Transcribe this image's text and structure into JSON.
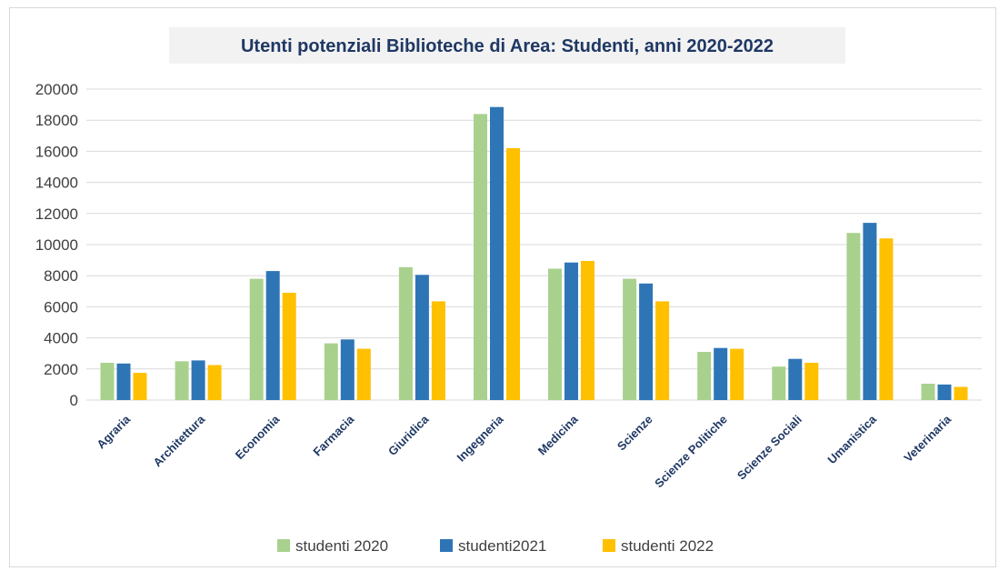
{
  "chart_data": {
    "type": "bar",
    "title": "Utenti potenziali Biblioteche di Area: Studenti, anni 2020-2022",
    "xlabel": "",
    "ylabel": "",
    "ylim": [
      0,
      20000
    ],
    "yticks": [
      0,
      2000,
      4000,
      6000,
      8000,
      10000,
      12000,
      14000,
      16000,
      18000,
      20000
    ],
    "grid": true,
    "legend_position": "bottom",
    "categories": [
      "Agraria",
      "Architettura",
      "Economia",
      "Farmacia",
      "Giuridica",
      "Ingegneria",
      "Medicina",
      "Scienze",
      "Scienze Politiche",
      "Scienze Sociali",
      "Umanistica",
      "Veterinaria"
    ],
    "series": [
      {
        "name": "studenti 2020",
        "color": "#a9d18e",
        "values": [
          2400,
          2500,
          7800,
          3650,
          8550,
          18400,
          8450,
          7800,
          3100,
          2150,
          10750,
          1050
        ]
      },
      {
        "name": "studenti2021",
        "color": "#2e75b6",
        "values": [
          2350,
          2550,
          8300,
          3900,
          8050,
          18850,
          8850,
          7500,
          3350,
          2650,
          11400,
          1000
        ]
      },
      {
        "name": "studenti 2022",
        "color": "#ffc000",
        "values": [
          1750,
          2250,
          6900,
          3300,
          6350,
          16200,
          8950,
          6350,
          3300,
          2400,
          10400,
          850
        ]
      }
    ],
    "colors": {
      "title_bg": "#f2f2f2",
      "title_text": "#1f3864",
      "category_text": "#1f3864",
      "gridline": "#d9d9d9",
      "axis_text": "#404040"
    }
  }
}
